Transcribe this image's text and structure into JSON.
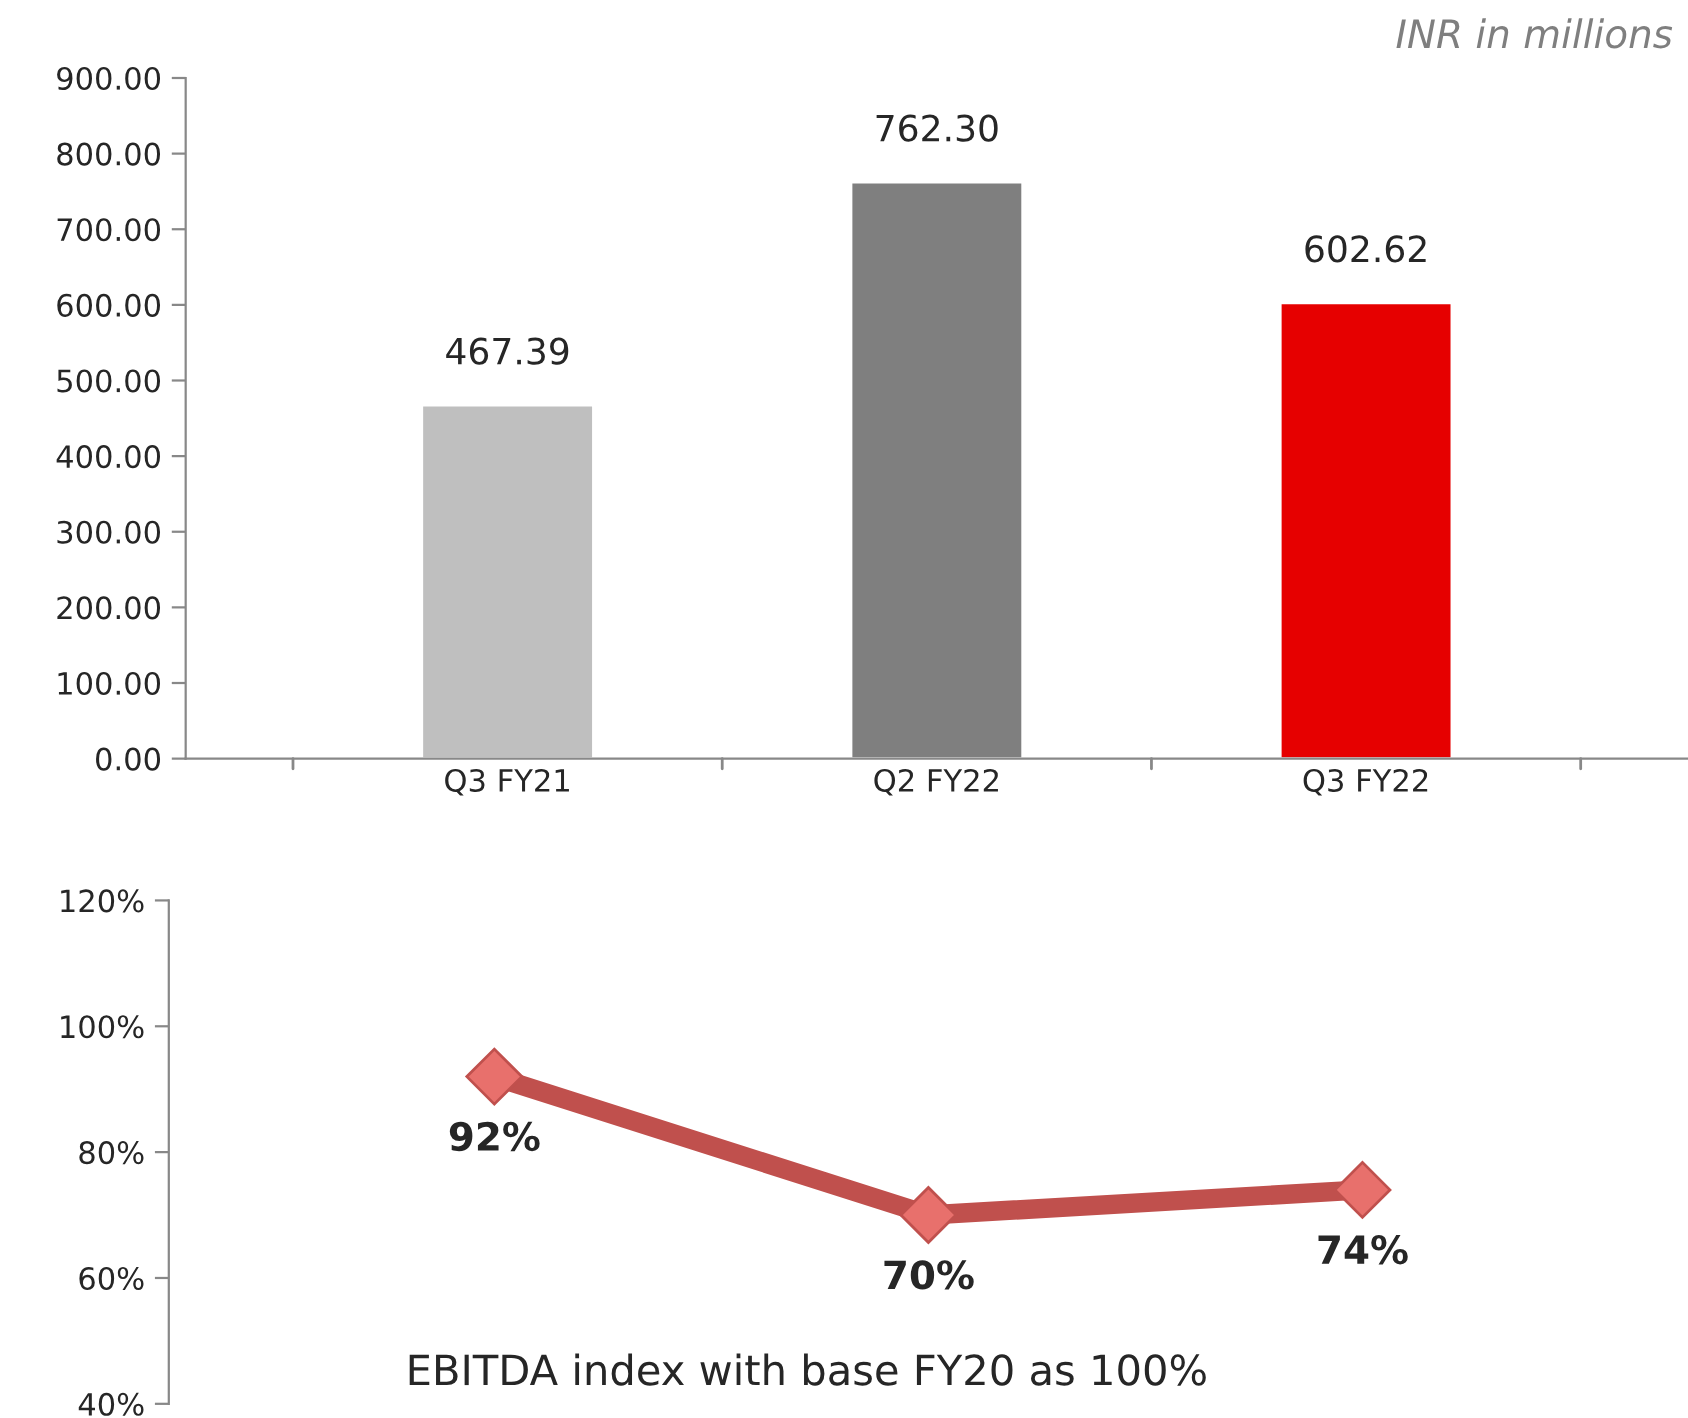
{
  "chart_data": [
    {
      "type": "bar",
      "categories": [
        "Q3 FY21",
        "Q2 FY22",
        "Q3 FY22"
      ],
      "values": [
        467.39,
        762.3,
        602.62
      ],
      "colors": [
        "#bfbfbf",
        "#7f7f7f",
        "#e60000"
      ],
      "value_labels": [
        "467.39",
        "762.30",
        "602.62"
      ],
      "ylim": [
        0,
        900
      ],
      "yticks": [
        {
          "value": 0,
          "label": "0.00"
        },
        {
          "value": 100,
          "label": "100.00"
        },
        {
          "value": 200,
          "label": "200.00"
        },
        {
          "value": 300,
          "label": "300.00"
        },
        {
          "value": 400,
          "label": "400.00"
        },
        {
          "value": 500,
          "label": "500.00"
        },
        {
          "value": 600,
          "label": "600.00"
        },
        {
          "value": 700,
          "label": "700.00"
        },
        {
          "value": 800,
          "label": "800.00"
        },
        {
          "value": 900,
          "label": "900.00"
        }
      ],
      "annotations": [
        "INR in millions"
      ]
    },
    {
      "type": "line",
      "categories": [
        null,
        null,
        null
      ],
      "series": [
        {
          "color": "#c0504d",
          "values": [
            92,
            70,
            74
          ]
        }
      ],
      "value_labels": [
        "92%",
        "70%",
        "74%"
      ],
      "marker": "diamond",
      "line_style": "solid",
      "tick_labels": "y",
      "ylim": [
        40,
        120
      ],
      "yticks": [
        {
          "value": 40,
          "label": "40%"
        },
        {
          "value": 60,
          "label": "60%"
        },
        {
          "value": 80,
          "label": "80%"
        },
        {
          "value": 100,
          "label": "100%"
        },
        {
          "value": 120,
          "label": "120%"
        }
      ],
      "annotations": [
        "EBITDA index with base FY20 as 100%"
      ]
    }
  ]
}
